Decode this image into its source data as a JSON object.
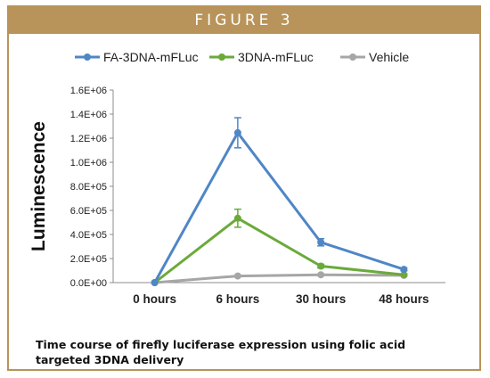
{
  "figure": {
    "banner": "FIGURE 3",
    "caption": "Time course of firefly luciferase expression using folic acid targeted 3DNA delivery"
  },
  "chart_data": {
    "type": "line",
    "categories": [
      "0 hours",
      "6 hours",
      "30 hours",
      "48 hours"
    ],
    "ylabel": "Luminescence",
    "xlabel": "",
    "ylim": [
      0,
      1600000
    ],
    "yticks": [
      0,
      200000,
      400000,
      600000,
      800000,
      1000000,
      1200000,
      1400000,
      1600000
    ],
    "ytick_labels": [
      "0.0E+00",
      "2.0E+05",
      "4.0E+05",
      "6.0E+05",
      "8.0E+05",
      "1.0E+06",
      "1.2E+06",
      "1.4E+06",
      "1.6E+06"
    ],
    "grid": false,
    "legend": "top",
    "series": [
      {
        "name": "FA-3DNA-mFLuc",
        "color": "#4f86c6",
        "values": [
          0,
          1245000,
          335000,
          110000
        ],
        "errors": [
          0,
          125000,
          30000,
          12000
        ]
      },
      {
        "name": "3DNA-mFLuc",
        "color": "#6aaa3a",
        "values": [
          0,
          535000,
          137000,
          65000
        ],
        "errors": [
          0,
          75000,
          15000,
          8000
        ]
      },
      {
        "name": "Vehicle",
        "color": "#a6a6a6",
        "values": [
          0,
          55000,
          65000,
          60000
        ],
        "errors": [
          0,
          5000,
          5000,
          5000
        ]
      }
    ]
  }
}
